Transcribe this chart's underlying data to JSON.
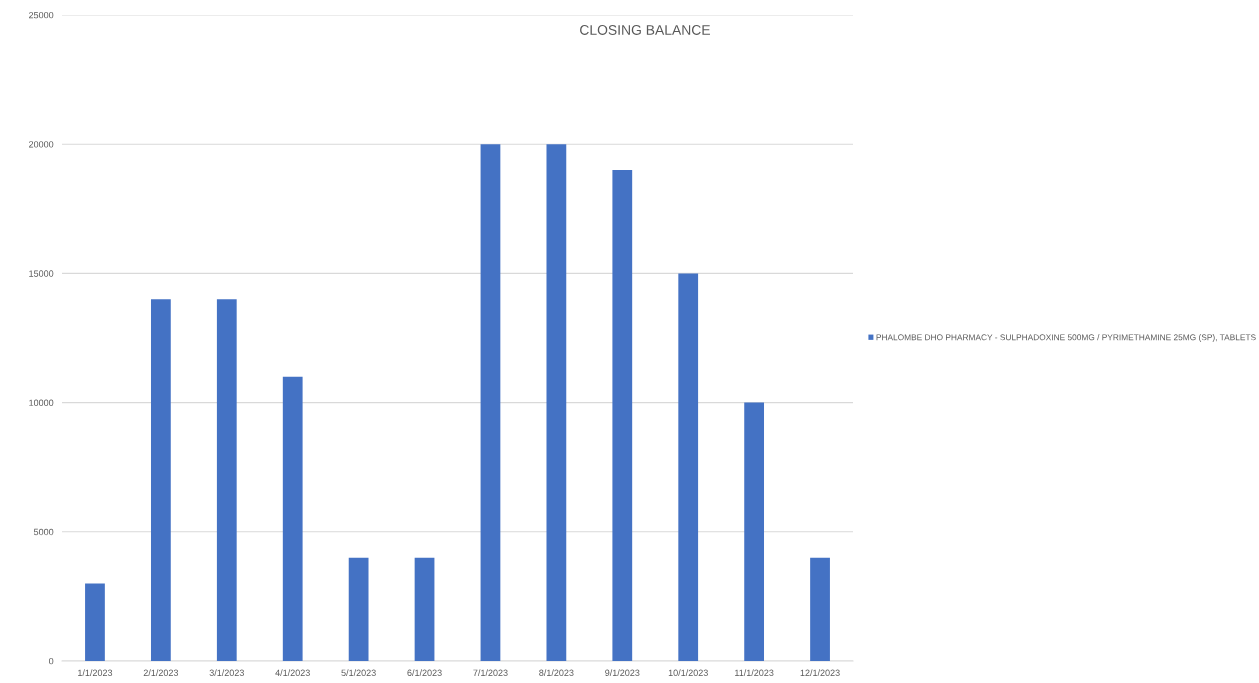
{
  "chart_data": {
    "type": "bar",
    "title": "CLOSING BALANCE",
    "categories": [
      "1/1/2023",
      "2/1/2023",
      "3/1/2023",
      "4/1/2023",
      "5/1/2023",
      "6/1/2023",
      "7/1/2023",
      "8/1/2023",
      "9/1/2023",
      "10/1/2023",
      "11/1/2023",
      "12/1/2023"
    ],
    "series": [
      {
        "name": "PHALOMBE DHO PHARMACY - SULPHADOXINE 500MG / PYRIMETHAMINE 25MG (SP), TABLETS",
        "color": "#4472c4",
        "values": [
          3000,
          14000,
          14000,
          11000,
          4000,
          4000,
          20000,
          20000,
          19000,
          15000,
          10000,
          4000
        ]
      }
    ],
    "ylim": [
      0,
      25000
    ],
    "yticks": [
      0,
      5000,
      10000,
      15000,
      20000,
      25000
    ],
    "grid": "y",
    "legend": "right"
  }
}
